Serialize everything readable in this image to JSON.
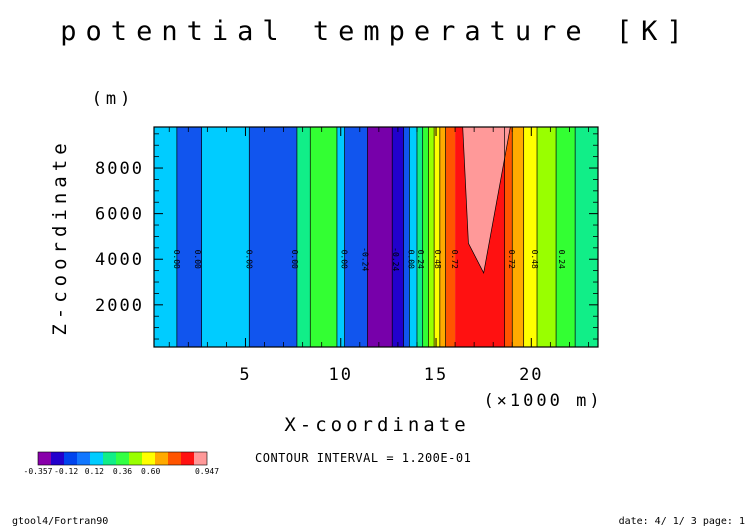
{
  "chart_data": {
    "type": "heatmap",
    "title": "potential temperature [K]",
    "xlabel": "X-coordinate",
    "ylabel": "Z-coordinate",
    "x_unit": "(×1000 m)",
    "y_unit": "(m)",
    "xlim": [
      0.2,
      23.5
    ],
    "ylim": [
      150,
      9800
    ],
    "x_ticks": [
      5,
      10,
      15,
      20
    ],
    "x_tick_labels": [
      "5",
      "10",
      "15",
      "20"
    ],
    "y_ticks": [
      2000,
      4000,
      6000,
      8000
    ],
    "y_tick_labels": [
      "2000",
      "4000",
      "6000",
      "8000"
    ],
    "contour_interval_text": "CONTOUR INTERVAL = 1.200E-01",
    "bands": [
      {
        "x0": 0.2,
        "x1": 1.4,
        "level": 3
      },
      {
        "x0": 1.4,
        "x1": 2.7,
        "level": 2
      },
      {
        "x0": 2.7,
        "x1": 5.2,
        "level": 3
      },
      {
        "x0": 5.2,
        "x1": 7.7,
        "level": 2
      },
      {
        "x0": 7.7,
        "x1": 8.4,
        "level": 4
      },
      {
        "x0": 8.4,
        "x1": 9.8,
        "level": 5
      },
      {
        "x0": 9.8,
        "x1": 10.2,
        "level": 3
      },
      {
        "x0": 10.2,
        "x1": 11.4,
        "level": 2
      },
      {
        "x0": 11.4,
        "x1": 12.7,
        "level": 0
      },
      {
        "x0": 12.7,
        "x1": 13.3,
        "level": 1
      },
      {
        "x0": 13.3,
        "x1": 13.6,
        "level": 2
      },
      {
        "x0": 13.6,
        "x1": 14.0,
        "level": 3
      },
      {
        "x0": 14.0,
        "x1": 14.3,
        "level": 4
      },
      {
        "x0": 14.3,
        "x1": 14.6,
        "level": 5
      },
      {
        "x0": 14.6,
        "x1": 14.9,
        "level": 6
      },
      {
        "x0": 14.9,
        "x1": 15.2,
        "level": 7
      },
      {
        "x0": 15.2,
        "x1": 15.5,
        "level": 8
      },
      {
        "x0": 15.5,
        "x1": 16.0,
        "level": 9
      },
      {
        "x0": 16.0,
        "x1": 18.6,
        "level": 10
      },
      {
        "x0": 18.6,
        "x1": 19.0,
        "level": 9
      },
      {
        "x0": 19.0,
        "x1": 19.6,
        "level": 8
      },
      {
        "x0": 19.6,
        "x1": 20.3,
        "level": 7
      },
      {
        "x0": 20.3,
        "x1": 21.3,
        "level": 6
      },
      {
        "x0": 21.3,
        "x1": 22.3,
        "level": 5
      },
      {
        "x0": 22.3,
        "x1": 23.5,
        "level": 4
      }
    ],
    "max_region": {
      "level": 11,
      "points": [
        [
          16.0,
          9800
        ],
        [
          18.9,
          9800
        ],
        [
          17.5,
          3400
        ],
        [
          16.7,
          4700
        ],
        [
          16.4,
          9800
        ]
      ]
    },
    "contour_lines": [
      1.4,
      2.7,
      5.2,
      7.7,
      8.4,
      9.8,
      10.2,
      11.4,
      12.7,
      13.3,
      13.6,
      14.0,
      14.3,
      14.6,
      14.9,
      15.2,
      15.5,
      18.6,
      19.0,
      19.6,
      20.3,
      21.3,
      22.3
    ],
    "contour_labels": [
      {
        "x": 1.4,
        "y": 4000,
        "text": "0.00"
      },
      {
        "x": 2.5,
        "y": 4000,
        "text": "0.00"
      },
      {
        "x": 5.2,
        "y": 4000,
        "text": "0.00"
      },
      {
        "x": 7.6,
        "y": 4000,
        "text": "0.00"
      },
      {
        "x": 10.2,
        "y": 4000,
        "text": "0.00"
      },
      {
        "x": 11.3,
        "y": 4000,
        "text": "-0.24"
      },
      {
        "x": 12.9,
        "y": 4000,
        "text": "-0.24"
      },
      {
        "x": 13.7,
        "y": 4000,
        "text": "0.00"
      },
      {
        "x": 14.2,
        "y": 4000,
        "text": "0.24"
      },
      {
        "x": 15.1,
        "y": 4000,
        "text": "0.48"
      },
      {
        "x": 16.0,
        "y": 4000,
        "text": "0.72"
      },
      {
        "x": 19.0,
        "y": 4000,
        "text": "0.72"
      },
      {
        "x": 20.2,
        "y": 4000,
        "text": "0.48"
      },
      {
        "x": 21.6,
        "y": 4000,
        "text": "0.24"
      }
    ],
    "colorbar": {
      "colors": [
        "#8800aa",
        "#2200cc",
        "#0044ee",
        "#1177ff",
        "#00ccff",
        "#11ee88",
        "#33ff44",
        "#99ff00",
        "#ffff00",
        "#ffaa00",
        "#ff5500",
        "#ff1111",
        "#ff9999"
      ],
      "tick_labels": [
        "-0.357",
        "-0.12",
        "0.12",
        "0.36",
        "0.60",
        "",
        "0.947"
      ]
    },
    "level_colors": [
      "#7700aa",
      "#2200cc",
      "#1155ee",
      "#00ccff",
      "#11ee88",
      "#33ff33",
      "#99ff00",
      "#ffff00",
      "#ffaa00",
      "#ff5500",
      "#ff1111",
      "#ff9999"
    ]
  },
  "footer": {
    "left": "gtool4/Fortran90",
    "right": "date: 4/ 1/ 3 page: 1"
  }
}
